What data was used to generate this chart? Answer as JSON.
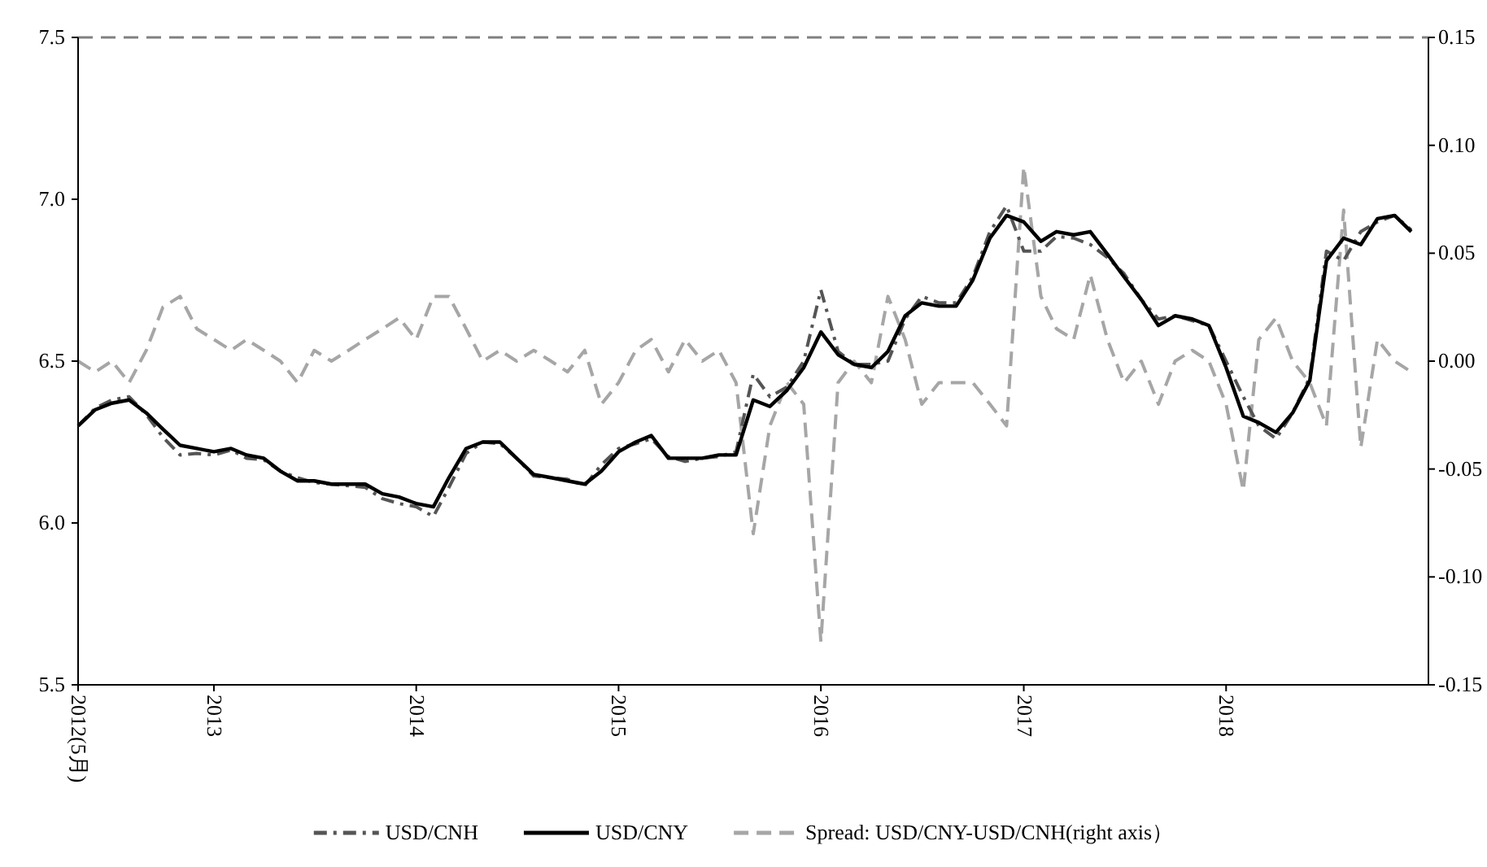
{
  "chart_data": {
    "type": "line",
    "x": [
      "2012-05",
      "2012-06",
      "2012-07",
      "2012-08",
      "2012-09",
      "2012-10",
      "2012-11",
      "2012-12",
      "2013-01",
      "2013-02",
      "2013-03",
      "2013-04",
      "2013-05",
      "2013-06",
      "2013-07",
      "2013-08",
      "2013-09",
      "2013-10",
      "2013-11",
      "2013-12",
      "2014-01",
      "2014-02",
      "2014-03",
      "2014-04",
      "2014-05",
      "2014-06",
      "2014-07",
      "2014-08",
      "2014-09",
      "2014-10",
      "2014-11",
      "2014-12",
      "2015-01",
      "2015-02",
      "2015-03",
      "2015-04",
      "2015-05",
      "2015-06",
      "2015-07",
      "2015-08",
      "2015-09",
      "2015-10",
      "2015-11",
      "2015-12",
      "2016-01",
      "2016-02",
      "2016-03",
      "2016-04",
      "2016-05",
      "2016-06",
      "2016-07",
      "2016-08",
      "2016-09",
      "2016-10",
      "2016-11",
      "2016-12",
      "2017-01",
      "2017-02",
      "2017-03",
      "2017-04",
      "2017-05",
      "2017-06",
      "2017-07",
      "2017-08",
      "2017-09",
      "2017-10",
      "2017-11",
      "2017-12",
      "2018-01",
      "2018-02",
      "2018-03",
      "2018-04",
      "2018-05",
      "2018-06",
      "2018-07",
      "2018-08",
      "2018-09",
      "2018-10",
      "2018-11",
      "2018-12"
    ],
    "series": [
      {
        "name": "USD/CNH",
        "color": "#555555",
        "line_style": "dashdot",
        "values": [
          6.3,
          6.355,
          6.38,
          6.39,
          6.335,
          6.265,
          6.21,
          6.215,
          6.21,
          6.225,
          6.2,
          6.195,
          6.16,
          6.14,
          6.125,
          6.12,
          6.115,
          6.11,
          6.075,
          6.06,
          6.05,
          6.02,
          6.11,
          6.215,
          6.25,
          6.245,
          6.2,
          6.145,
          6.14,
          6.135,
          6.115,
          6.18,
          6.23,
          6.245,
          6.26,
          6.205,
          6.19,
          6.2,
          6.205,
          6.22,
          6.46,
          6.39,
          6.42,
          6.5,
          6.72,
          6.53,
          6.49,
          6.49,
          6.5,
          6.63,
          6.7,
          6.68,
          6.68,
          6.76,
          6.9,
          6.98,
          6.84,
          6.84,
          6.885,
          6.88,
          6.86,
          6.82,
          6.77,
          6.69,
          6.63,
          6.64,
          6.625,
          6.61,
          6.5,
          6.39,
          6.3,
          6.26,
          6.34,
          6.45,
          6.84,
          6.81,
          6.9,
          6.93,
          6.95,
          6.905
        ]
      },
      {
        "name": "USD/CNY",
        "color": "#000000",
        "line_style": "solid",
        "values": [
          6.3,
          6.35,
          6.37,
          6.38,
          6.34,
          6.29,
          6.24,
          6.23,
          6.22,
          6.23,
          6.21,
          6.2,
          6.16,
          6.13,
          6.13,
          6.12,
          6.12,
          6.12,
          6.09,
          6.08,
          6.06,
          6.05,
          6.14,
          6.23,
          6.25,
          6.25,
          6.2,
          6.15,
          6.14,
          6.13,
          6.12,
          6.16,
          6.22,
          6.25,
          6.27,
          6.2,
          6.2,
          6.2,
          6.21,
          6.21,
          6.38,
          6.36,
          6.41,
          6.48,
          6.59,
          6.52,
          6.49,
          6.48,
          6.53,
          6.64,
          6.68,
          6.67,
          6.67,
          6.75,
          6.88,
          6.95,
          6.93,
          6.87,
          6.9,
          6.89,
          6.9,
          6.83,
          6.76,
          6.69,
          6.61,
          6.64,
          6.63,
          6.61,
          6.48,
          6.33,
          6.31,
          6.28,
          6.34,
          6.44,
          6.81,
          6.88,
          6.86,
          6.94,
          6.95,
          6.9
        ]
      },
      {
        "name": "Spread: USD/CNY-USD/CNH(right axis）",
        "color": "#a6a6a6",
        "line_style": "dashed",
        "axis": "y2",
        "values": [
          0.0,
          -0.005,
          0.0,
          -0.01,
          0.005,
          0.025,
          0.03,
          0.015,
          0.01,
          0.005,
          0.01,
          0.005,
          0.0,
          -0.01,
          0.005,
          0.0,
          0.005,
          0.01,
          0.015,
          0.02,
          0.01,
          0.03,
          0.03,
          0.015,
          0.0,
          0.005,
          0.0,
          0.005,
          0.0,
          -0.005,
          0.005,
          -0.02,
          -0.01,
          0.005,
          0.01,
          -0.005,
          0.01,
          0.0,
          0.005,
          -0.01,
          -0.08,
          -0.03,
          -0.01,
          -0.02,
          -0.13,
          -0.01,
          0.0,
          -0.01,
          0.03,
          0.01,
          -0.02,
          -0.01,
          -0.01,
          -0.01,
          -0.02,
          -0.03,
          0.09,
          0.03,
          0.015,
          0.01,
          0.04,
          0.01,
          -0.01,
          0.0,
          -0.02,
          0.0,
          0.005,
          0.0,
          -0.02,
          -0.06,
          0.01,
          0.02,
          0.0,
          -0.01,
          -0.03,
          0.07,
          -0.04,
          0.01,
          0.0,
          -0.005
        ]
      }
    ],
    "xlim": [
      "2012-05-01",
      "2019-01-01"
    ],
    "xticks": [
      {
        "value": "2012-05-01",
        "label": "2012(5月)"
      },
      {
        "value": "2013-01-01",
        "label": "2013"
      },
      {
        "value": "2014-01-01",
        "label": "2014"
      },
      {
        "value": "2015-01-01",
        "label": "2015"
      },
      {
        "value": "2016-01-01",
        "label": "2016"
      },
      {
        "value": "2017-01-01",
        "label": "2017"
      },
      {
        "value": "2018-01-01",
        "label": "2018"
      }
    ],
    "ylim": [
      5.5,
      7.5
    ],
    "yticks": [
      {
        "value": 5.5,
        "label": "5.5"
      },
      {
        "value": 6,
        "label": "6.0"
      },
      {
        "value": 6.5,
        "label": "6.5"
      },
      {
        "value": 7,
        "label": "7.0"
      },
      {
        "value": 7.5,
        "label": "7.5"
      }
    ],
    "y2lim": [
      -0.15,
      0.15
    ],
    "y2ticks": [
      {
        "value": -0.15,
        "label": "-0.15"
      },
      {
        "value": -0.1,
        "label": "-0.10"
      },
      {
        "value": -0.05,
        "label": "-0.05"
      },
      {
        "value": 0,
        "label": "0.00"
      },
      {
        "value": 0.05,
        "label": "0.05"
      },
      {
        "value": 0.1,
        "label": "0.10"
      },
      {
        "value": 0.15,
        "label": "0.15"
      }
    ],
    "legend": "bottom"
  }
}
